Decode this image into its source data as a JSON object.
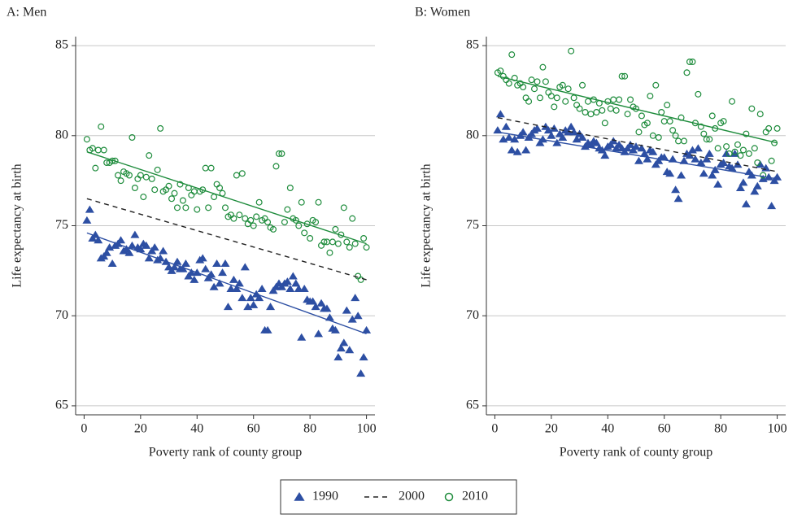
{
  "chart_data": [
    {
      "type": "scatter",
      "title": "A: Men",
      "x_label": "Poverty rank of county group",
      "y_label": "Life expectancy at birth",
      "xlim": [
        -3,
        103
      ],
      "xticks": [
        0,
        20,
        40,
        60,
        80,
        100
      ],
      "ylim": [
        64.5,
        85.5
      ],
      "yticks": [
        65,
        70,
        75,
        80,
        85
      ],
      "grid": true,
      "x": [
        1,
        2,
        3,
        4,
        5,
        6,
        7,
        8,
        9,
        10,
        11,
        12,
        13,
        14,
        15,
        16,
        17,
        18,
        19,
        20,
        21,
        22,
        23,
        24,
        25,
        26,
        27,
        28,
        29,
        30,
        31,
        32,
        33,
        34,
        35,
        36,
        37,
        38,
        39,
        40,
        41,
        42,
        43,
        44,
        45,
        46,
        47,
        48,
        49,
        50,
        51,
        52,
        53,
        54,
        55,
        56,
        57,
        58,
        59,
        60,
        61,
        62,
        63,
        64,
        65,
        66,
        67,
        68,
        69,
        70,
        71,
        72,
        73,
        74,
        75,
        76,
        77,
        78,
        79,
        80,
        81,
        82,
        83,
        84,
        85,
        86,
        87,
        88,
        89,
        90,
        91,
        92,
        93,
        94,
        95,
        96,
        97,
        98,
        99,
        100
      ],
      "series": [
        {
          "marker": "triangle",
          "color": "#2d4fa3",
          "values": [
            75.3,
            75.9,
            74.3,
            74.5,
            74.2,
            73.2,
            73.3,
            73.5,
            73.8,
            72.9,
            73.9,
            74.0,
            74.2,
            73.6,
            73.7,
            73.5,
            73.9,
            74.5,
            73.8,
            73.7,
            74.0,
            73.9,
            73.2,
            73.6,
            73.8,
            73.1,
            73.2,
            73.6,
            73.0,
            72.7,
            72.5,
            72.7,
            73.0,
            72.6,
            72.6,
            72.9,
            72.2,
            72.4,
            72.0,
            72.4,
            73.1,
            73.2,
            72.6,
            72.1,
            72.3,
            71.6,
            72.9,
            71.8,
            72.4,
            72.9,
            70.5,
            71.5,
            72.0,
            71.5,
            71.8,
            71.0,
            72.7,
            70.5,
            71.0,
            70.6,
            71.2,
            71.0,
            71.5,
            69.2,
            69.2,
            70.5,
            71.4,
            71.6,
            71.8,
            71.6,
            71.8,
            71.9,
            71.5,
            72.2,
            71.8,
            71.5,
            68.8,
            71.5,
            70.9,
            70.8,
            70.8,
            70.5,
            69.0,
            70.7,
            70.4,
            70.4,
            69.9,
            69.3,
            69.2,
            67.7,
            68.2,
            68.5,
            70.3,
            68.1,
            69.8,
            71.0,
            70.0,
            66.8,
            67.7,
            69.2
          ]
        },
        {
          "marker": "circle",
          "color": "#1e8c3c",
          "values": [
            79.8,
            79.2,
            79.3,
            78.2,
            79.2,
            80.5,
            79.2,
            78.5,
            78.5,
            78.6,
            78.6,
            77.8,
            77.5,
            78.0,
            77.9,
            77.8,
            79.9,
            77.1,
            77.6,
            77.8,
            76.6,
            77.7,
            78.9,
            77.6,
            77.0,
            78.1,
            80.4,
            76.9,
            77.0,
            77.2,
            76.5,
            76.8,
            76.0,
            77.3,
            76.4,
            76.0,
            77.1,
            76.7,
            76.9,
            75.9,
            76.9,
            77.0,
            78.2,
            76.0,
            78.2,
            76.6,
            77.3,
            77.1,
            76.8,
            76.0,
            75.5,
            75.6,
            75.4,
            77.8,
            75.6,
            77.9,
            75.4,
            75.1,
            75.3,
            75.0,
            75.5,
            76.3,
            75.3,
            75.4,
            75.2,
            74.9,
            74.8,
            78.3,
            79.0,
            79.0,
            75.2,
            75.9,
            77.1,
            75.4,
            75.3,
            75.0,
            76.3,
            74.6,
            75.1,
            74.3,
            75.3,
            75.2,
            76.3,
            73.9,
            74.1,
            74.1,
            73.5,
            74.1,
            74.8,
            74.0,
            74.5,
            76.0,
            74.1,
            73.8,
            75.4,
            74.0,
            72.2,
            72.0,
            74.3,
            73.8
          ]
        }
      ],
      "lines": [
        {
          "x": [
            1,
            100
          ],
          "values": [
            74.6,
            69.0
          ],
          "color": "#2d4fa3",
          "dash": "solid"
        },
        {
          "x": [
            1,
            100
          ],
          "values": [
            76.5,
            72.0
          ],
          "color": "#222222",
          "dash": "dashed"
        },
        {
          "x": [
            1,
            100
          ],
          "values": [
            79.1,
            74.0
          ],
          "color": "#1e8c3c",
          "dash": "solid"
        }
      ]
    },
    {
      "type": "scatter",
      "title": "B: Women",
      "x_label": "Poverty rank of county group",
      "y_label": "Life expectancy at birth",
      "xlim": [
        -3,
        103
      ],
      "xticks": [
        0,
        20,
        40,
        60,
        80,
        100
      ],
      "ylim": [
        64.5,
        85.5
      ],
      "yticks": [
        65,
        70,
        75,
        80,
        85
      ],
      "grid": true,
      "x": [
        1,
        2,
        3,
        4,
        5,
        6,
        7,
        8,
        9,
        10,
        11,
        12,
        13,
        14,
        15,
        16,
        17,
        18,
        19,
        20,
        21,
        22,
        23,
        24,
        25,
        26,
        27,
        28,
        29,
        30,
        31,
        32,
        33,
        34,
        35,
        36,
        37,
        38,
        39,
        40,
        41,
        42,
        43,
        44,
        45,
        46,
        47,
        48,
        49,
        50,
        51,
        52,
        53,
        54,
        55,
        56,
        57,
        58,
        59,
        60,
        61,
        62,
        63,
        64,
        65,
        66,
        67,
        68,
        69,
        70,
        71,
        72,
        73,
        74,
        75,
        76,
        77,
        78,
        79,
        80,
        81,
        82,
        83,
        84,
        85,
        86,
        87,
        88,
        89,
        90,
        91,
        92,
        93,
        94,
        95,
        96,
        97,
        98,
        99,
        100
      ],
      "series": [
        {
          "marker": "triangle",
          "color": "#2d4fa3",
          "values": [
            80.3,
            81.2,
            79.8,
            80.5,
            79.9,
            79.2,
            79.8,
            79.1,
            80.0,
            80.2,
            79.2,
            79.9,
            80.1,
            80.3,
            80.4,
            79.6,
            79.8,
            80.5,
            80.3,
            80.0,
            80.4,
            79.6,
            80.1,
            79.9,
            80.3,
            80.2,
            80.5,
            80.2,
            79.8,
            80.1,
            79.9,
            79.4,
            79.6,
            79.5,
            79.7,
            79.6,
            79.3,
            79.2,
            78.9,
            79.4,
            79.5,
            79.7,
            79.3,
            79.5,
            79.3,
            79.1,
            79.3,
            79.5,
            79.2,
            79.4,
            78.6,
            79.3,
            79.0,
            78.7,
            79.2,
            79.1,
            78.4,
            78.6,
            78.8,
            78.8,
            78.0,
            77.9,
            78.7,
            77.0,
            76.5,
            77.8,
            78.6,
            79.0,
            78.9,
            79.2,
            78.7,
            79.3,
            78.5,
            77.9,
            78.7,
            79.0,
            77.8,
            78.1,
            77.3,
            78.4,
            78.5,
            79.0,
            78.3,
            78.2,
            79.0,
            78.4,
            77.1,
            77.4,
            76.2,
            78.0,
            77.8,
            76.9,
            77.2,
            78.4,
            77.6,
            78.2,
            77.7,
            76.1,
            77.5,
            77.7
          ]
        },
        {
          "marker": "circle",
          "color": "#1e8c3c",
          "values": [
            83.5,
            83.6,
            83.3,
            83.1,
            82.9,
            84.5,
            83.2,
            82.8,
            82.9,
            82.7,
            82.1,
            81.9,
            83.1,
            82.6,
            83.0,
            82.1,
            83.8,
            83.0,
            82.4,
            82.2,
            81.6,
            82.1,
            82.7,
            82.8,
            81.9,
            82.6,
            84.7,
            82.1,
            81.7,
            81.5,
            82.8,
            81.3,
            81.9,
            81.2,
            82.0,
            81.3,
            81.8,
            81.4,
            80.7,
            81.9,
            81.5,
            82.0,
            81.4,
            82.0,
            83.3,
            83.3,
            81.2,
            82.0,
            81.6,
            81.5,
            80.2,
            81.1,
            80.6,
            80.7,
            82.2,
            80.0,
            82.8,
            79.9,
            81.3,
            80.8,
            81.7,
            80.8,
            80.3,
            80.0,
            79.7,
            81.0,
            79.7,
            83.5,
            84.1,
            84.1,
            80.7,
            82.3,
            80.5,
            80.1,
            79.8,
            79.8,
            81.1,
            80.4,
            79.3,
            80.7,
            80.8,
            79.4,
            79.0,
            81.9,
            79.1,
            79.5,
            78.9,
            79.2,
            80.1,
            79.0,
            81.5,
            79.3,
            78.5,
            81.2,
            77.8,
            80.2,
            80.4,
            78.6,
            79.6,
            80.4
          ]
        }
      ],
      "lines": [
        {
          "x": [
            1,
            100
          ],
          "values": [
            80.2,
            77.6
          ],
          "color": "#2d4fa3",
          "dash": "solid"
        },
        {
          "x": [
            1,
            100
          ],
          "values": [
            81.0,
            78.0
          ],
          "color": "#222222",
          "dash": "dashed"
        },
        {
          "x": [
            1,
            100
          ],
          "values": [
            83.3,
            79.6
          ],
          "color": "#1e8c3c",
          "dash": "solid"
        }
      ]
    }
  ],
  "legend": {
    "entries": [
      {
        "label": "1990",
        "marker": "triangle",
        "color": "#2d4fa3"
      },
      {
        "label": "2000",
        "marker": "dashed",
        "color": "#222222"
      },
      {
        "label": "2010",
        "marker": "circle",
        "color": "#1e8c3c"
      }
    ]
  }
}
